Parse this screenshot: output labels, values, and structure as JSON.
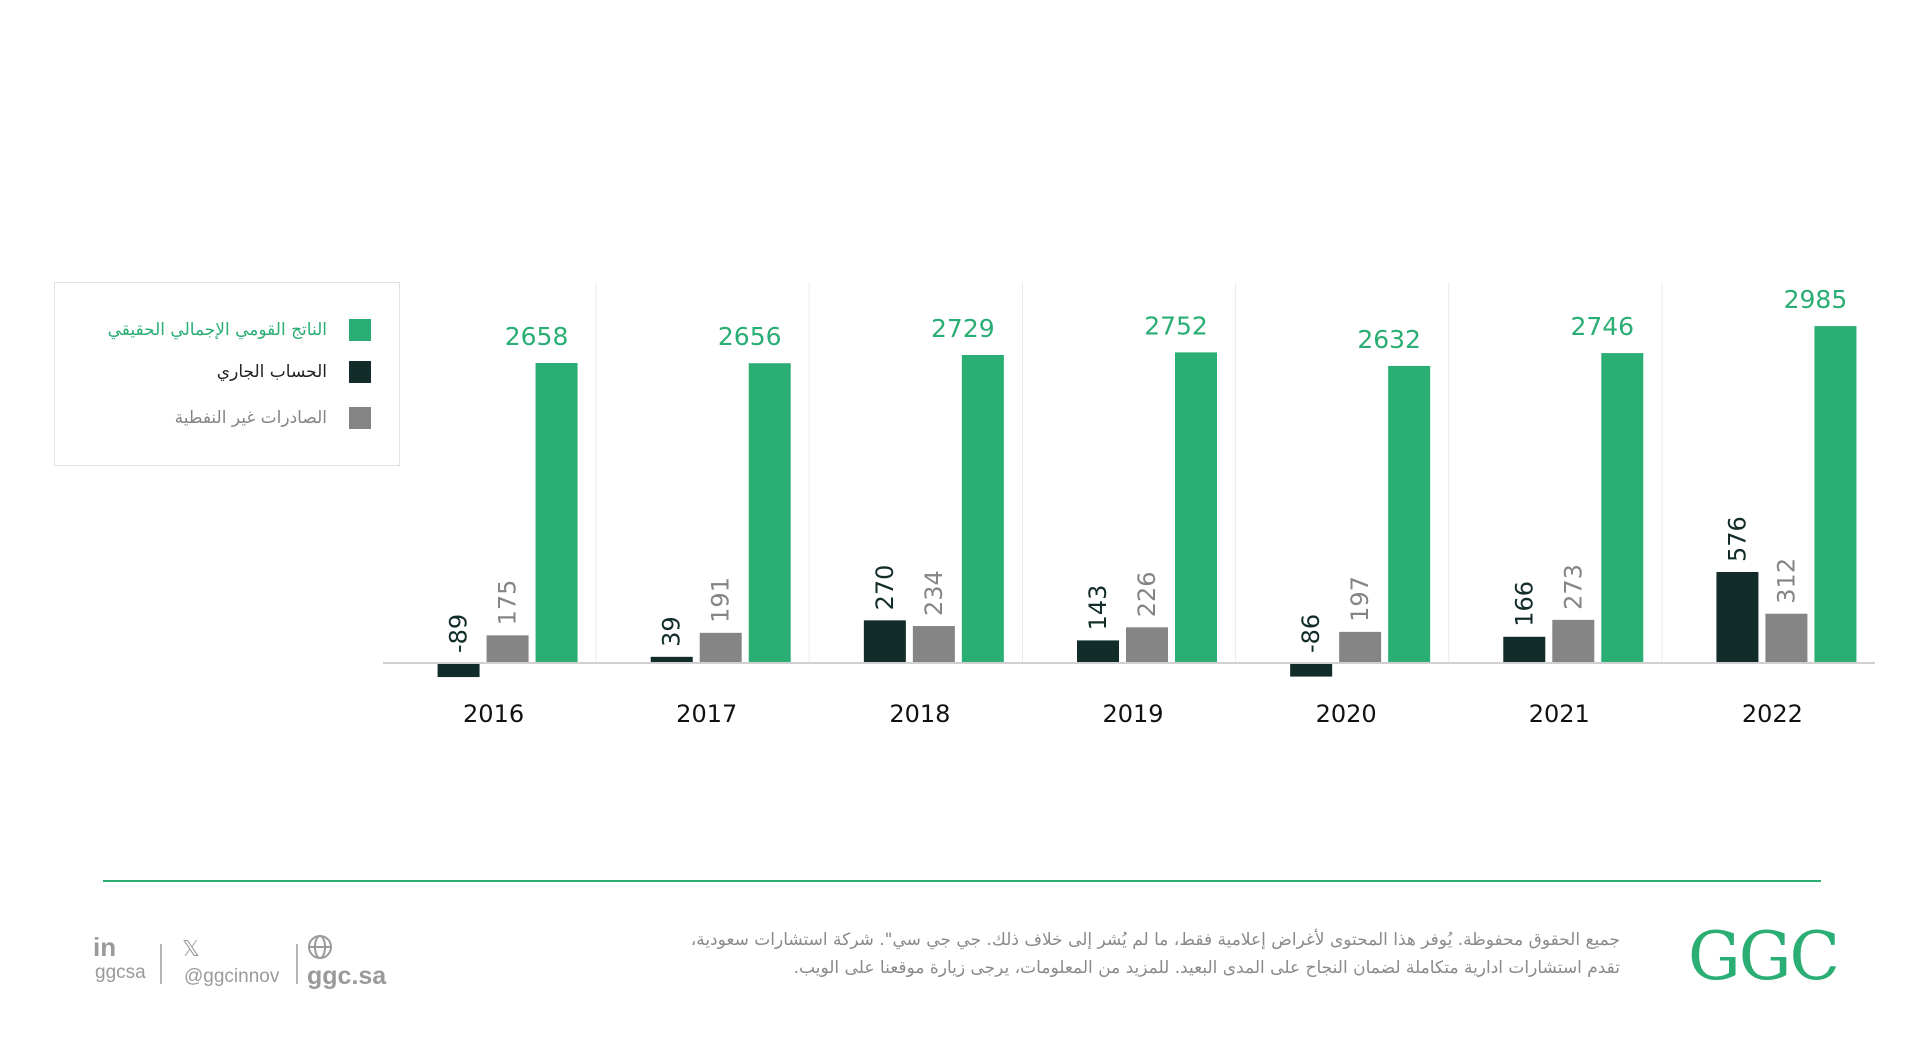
{
  "chart_data": {
    "type": "bar",
    "categories": [
      "2016",
      "2017",
      "2018",
      "2019",
      "2020",
      "2021",
      "2022"
    ],
    "series": [
      {
        "name": "الحساب الجاري",
        "color": "#122c2a",
        "values": [
          -89,
          39,
          270,
          143,
          -86,
          166,
          576
        ]
      },
      {
        "name": "الصادرات غير النفطية",
        "color": "#858585",
        "values": [
          175,
          191,
          234,
          226,
          197,
          273,
          312
        ]
      },
      {
        "name": "الناتج القومي الإجمالي الحقيقي",
        "color": "#2aae73",
        "values": [
          2658,
          2656,
          2729,
          2752,
          2632,
          2746,
          2985
        ]
      }
    ],
    "legend_position": "left"
  },
  "legend": {
    "items": [
      {
        "label": "الناتج القومي الإجمالي الحقيقي",
        "color": "#2aae73",
        "text_color": "#2aae73"
      },
      {
        "label": "الحساب الجاري",
        "color": "#122c2a",
        "text_color": "#222222"
      },
      {
        "label": "الصادرات غير النفطية",
        "color": "#858585",
        "text_color": "#858585"
      }
    ]
  },
  "footer": {
    "line1": "جميع الحقوق محفوظة. يُوفر هذا المحتوى لأغراض إعلامية فقط، ما لم يُشر إلى خلاف ذلك.  جي جي سي\". شركة استشارات سعودية،",
    "line2": "تقدم استشارات ادارية متكاملة لضمان النجاح على المدى البعيد. للمزيد من المعلومات، يرجى زيارة موقعنا على الويب.",
    "logo": "GGC",
    "social": {
      "linkedin_icon_text": "in",
      "linkedin_handle": "ggcsa",
      "x_icon_text": "𝕏",
      "x_handle": "@ggcinnov",
      "website": "ggc.sa"
    }
  },
  "colors": {
    "green": "#2aae73",
    "dark": "#122c2a",
    "gray": "#858585"
  }
}
